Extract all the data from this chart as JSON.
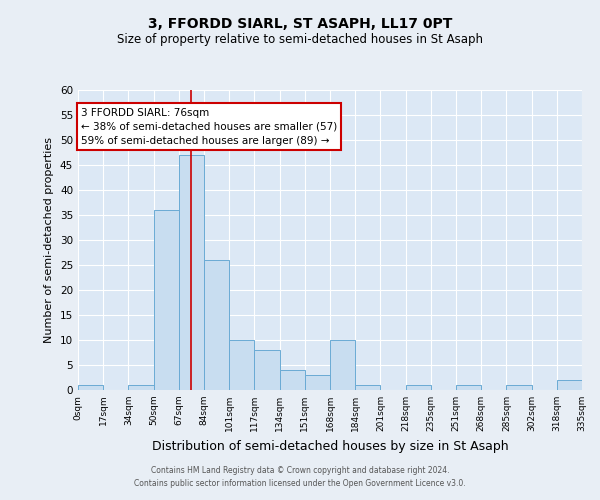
{
  "title": "3, FFORDD SIARL, ST ASAPH, LL17 0PT",
  "subtitle": "Size of property relative to semi-detached houses in St Asaph",
  "xlabel": "Distribution of semi-detached houses by size in St Asaph",
  "ylabel": "Number of semi-detached properties",
  "bin_edges": [
    0,
    17,
    34,
    51,
    68,
    85,
    102,
    119,
    136,
    153,
    170,
    187,
    204,
    221,
    238,
    255,
    272,
    289,
    306,
    323,
    340
  ],
  "bin_counts": [
    1,
    0,
    1,
    36,
    47,
    26,
    10,
    8,
    4,
    3,
    10,
    1,
    0,
    1,
    0,
    1,
    0,
    1,
    0,
    2
  ],
  "xtick_labels": [
    "0sqm",
    "17sqm",
    "34sqm",
    "50sqm",
    "67sqm",
    "84sqm",
    "101sqm",
    "117sqm",
    "134sqm",
    "151sqm",
    "168sqm",
    "184sqm",
    "201sqm",
    "218sqm",
    "235sqm",
    "251sqm",
    "268sqm",
    "285sqm",
    "302sqm",
    "318sqm",
    "335sqm"
  ],
  "xtick_positions": [
    0,
    17,
    34,
    51,
    68,
    85,
    102,
    119,
    136,
    153,
    170,
    187,
    204,
    221,
    238,
    255,
    272,
    289,
    306,
    323,
    340
  ],
  "bar_color": "#c8ddf0",
  "bar_edge_color": "#6aaad4",
  "property_value": 76,
  "vline_color": "#cc0000",
  "ylim": [
    0,
    60
  ],
  "yticks": [
    0,
    5,
    10,
    15,
    20,
    25,
    30,
    35,
    40,
    45,
    50,
    55,
    60
  ],
  "annotation_title": "3 FFORDD SIARL: 76sqm",
  "annotation_line1": "← 38% of semi-detached houses are smaller (57)",
  "annotation_line2": "59% of semi-detached houses are larger (89) →",
  "annotation_box_facecolor": "#ffffff",
  "annotation_box_edgecolor": "#cc0000",
  "bg_color": "#e8eef5",
  "plot_bg_color": "#dce8f5",
  "footer_line1": "Contains HM Land Registry data © Crown copyright and database right 2024.",
  "footer_line2": "Contains public sector information licensed under the Open Government Licence v3.0.",
  "title_fontsize": 10,
  "subtitle_fontsize": 8.5,
  "ylabel_fontsize": 8,
  "xlabel_fontsize": 9
}
